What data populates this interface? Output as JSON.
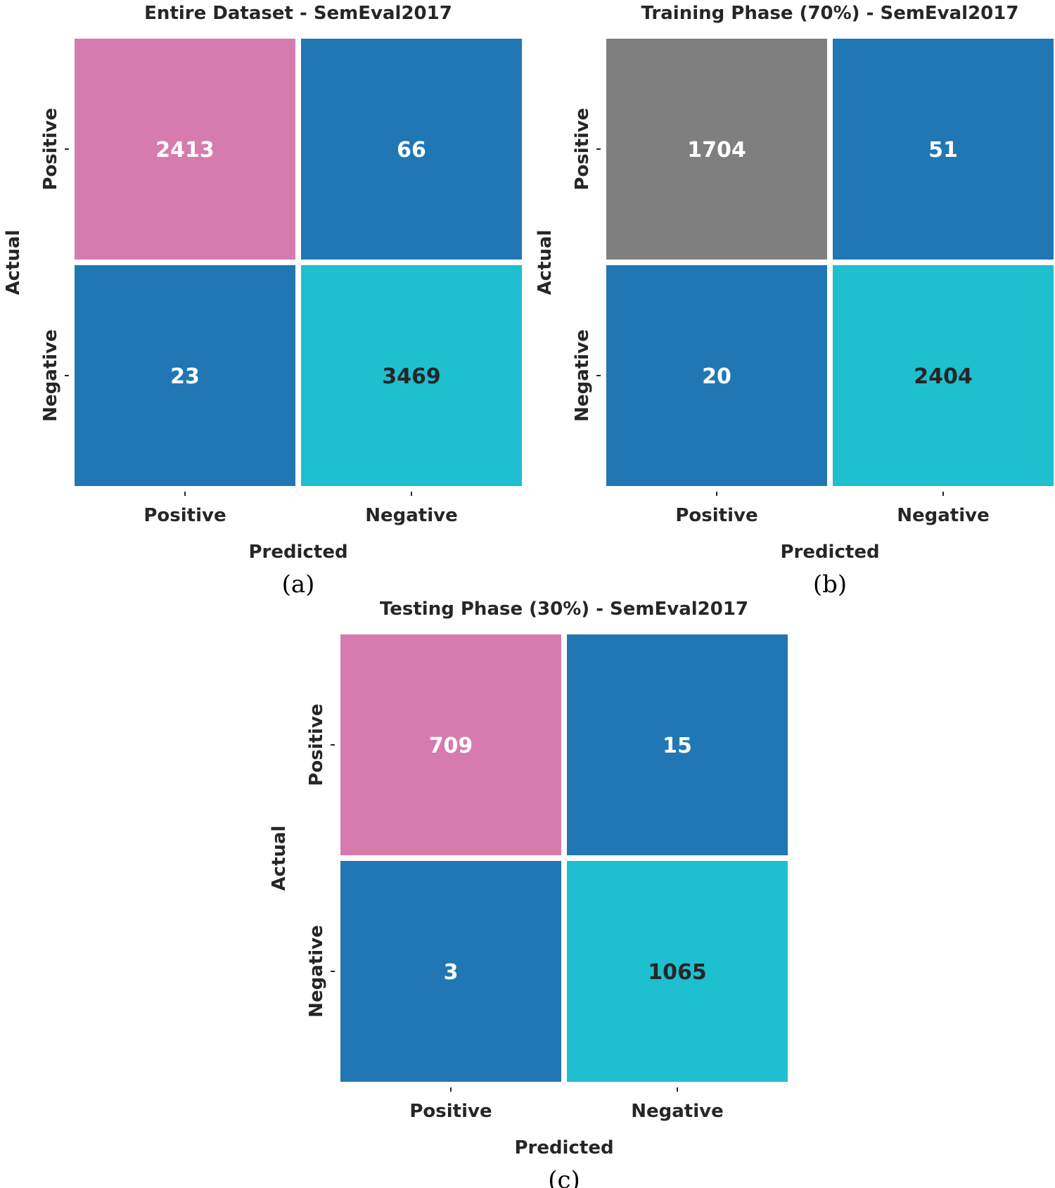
{
  "chart_data": [
    {
      "type": "heatmap",
      "title": "Entire Dataset - SemEval2017",
      "caption": "(a)",
      "xlabel": "Predicted",
      "ylabel": "Actual",
      "x_categories": [
        "Positive",
        "Negative"
      ],
      "y_categories": [
        "Positive",
        "Negative"
      ],
      "values": [
        [
          2413,
          66
        ],
        [
          23,
          3469
        ]
      ],
      "cell_colors": [
        [
          "#d67bad",
          "#2077b4"
        ],
        [
          "#2077b4",
          "#1ebfcf"
        ]
      ],
      "value_text_colors": [
        [
          "#ffffff",
          "#ffffff"
        ],
        [
          "#ffffff",
          "#262626"
        ]
      ]
    },
    {
      "type": "heatmap",
      "title": "Training Phase (70%) - SemEval2017",
      "caption": "(b)",
      "xlabel": "Predicted",
      "ylabel": "Actual",
      "x_categories": [
        "Positive",
        "Negative"
      ],
      "y_categories": [
        "Positive",
        "Negative"
      ],
      "values": [
        [
          1704,
          51
        ],
        [
          20,
          2404
        ]
      ],
      "cell_colors": [
        [
          "#7f7f7f",
          "#2077b4"
        ],
        [
          "#2077b4",
          "#1ebfcf"
        ]
      ],
      "value_text_colors": [
        [
          "#ffffff",
          "#ffffff"
        ],
        [
          "#ffffff",
          "#262626"
        ]
      ]
    },
    {
      "type": "heatmap",
      "title": "Testing Phase (30%) - SemEval2017",
      "caption": "(c)",
      "xlabel": "Predicted",
      "ylabel": "Actual",
      "x_categories": [
        "Positive",
        "Negative"
      ],
      "y_categories": [
        "Positive",
        "Negative"
      ],
      "values": [
        [
          709,
          15
        ],
        [
          3,
          1065
        ]
      ],
      "cell_colors": [
        [
          "#d67bad",
          "#2077b4"
        ],
        [
          "#2077b4",
          "#1ebfcf"
        ]
      ],
      "value_text_colors": [
        [
          "#ffffff",
          "#ffffff"
        ],
        [
          "#ffffff",
          "#262626"
        ]
      ]
    }
  ],
  "colors": {
    "axis_text": "#262626",
    "cell_border": "#ffffff"
  }
}
